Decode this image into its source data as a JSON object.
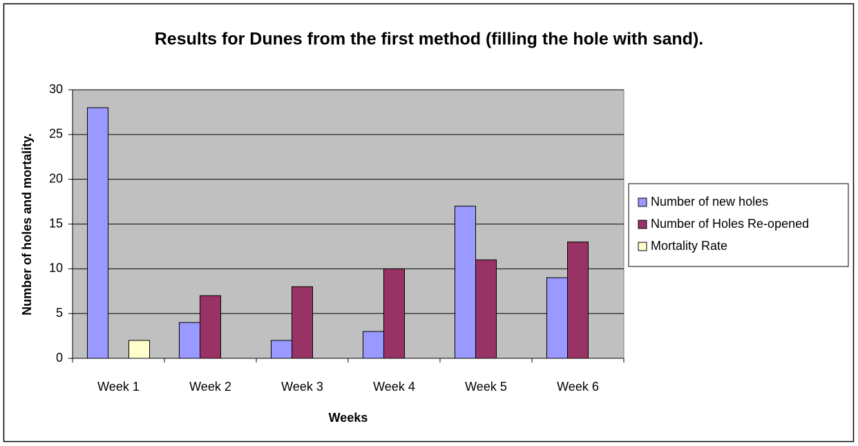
{
  "chart_data": {
    "type": "bar",
    "title": "Results for Dunes from the first method (filling the hole with sand).",
    "x_label": "Weeks",
    "y_label": "Number of holes and mortality.",
    "categories": [
      "Week 1",
      "Week 2",
      "Week 3",
      "Week 4",
      "Week 5",
      "Week 6"
    ],
    "series": [
      {
        "name": "Number of new holes",
        "color": "#9999ff",
        "values": [
          28,
          4,
          2,
          3,
          17,
          9
        ]
      },
      {
        "name": "Number of Holes Re-opened",
        "color": "#993366",
        "values": [
          0,
          7,
          8,
          10,
          11,
          13
        ]
      },
      {
        "name": "Mortality Rate",
        "color": "#ffffcc",
        "values": [
          2,
          0,
          0,
          0,
          0,
          0
        ]
      }
    ],
    "ylim": [
      0,
      30
    ],
    "yticks": [
      0,
      5,
      10,
      15,
      20,
      25,
      30
    ],
    "grid": true,
    "legend": "right"
  }
}
